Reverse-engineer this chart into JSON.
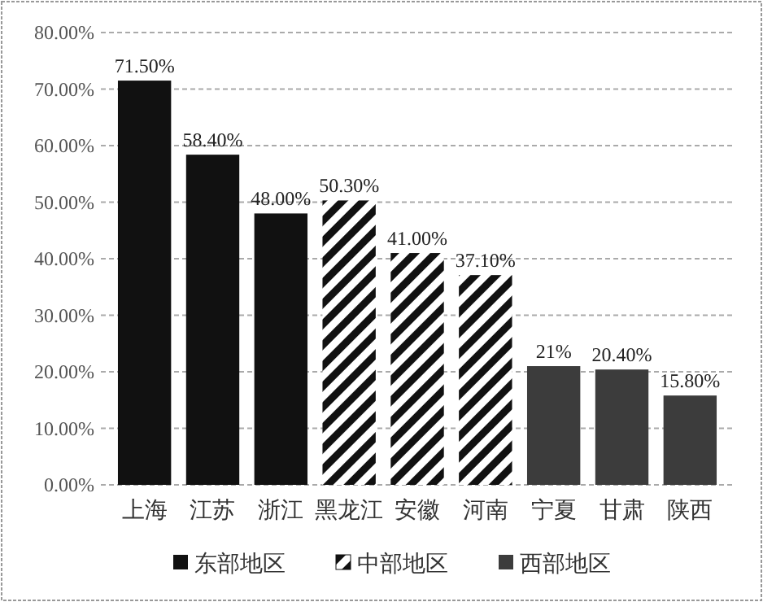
{
  "chart_data": {
    "type": "bar",
    "categories": [
      "上海",
      "江苏",
      "浙江",
      "黑龙江",
      "安徽",
      "河南",
      "宁夏",
      "甘肃",
      "陕西"
    ],
    "series": [
      {
        "name": "东部地区",
        "color": "#111111",
        "values": [
          71.5,
          58.4,
          48.0,
          null,
          null,
          null,
          null,
          null,
          null
        ],
        "value_labels": [
          "71.50%",
          "58.40%",
          "48.00%",
          null,
          null,
          null,
          null,
          null,
          null
        ]
      },
      {
        "name": "中部地区",
        "color": "#111111",
        "values": [
          null,
          null,
          null,
          50.3,
          41.0,
          37.1,
          null,
          null,
          null
        ],
        "value_labels": [
          null,
          null,
          null,
          "50.30%",
          "41.00%",
          "37.10%",
          null,
          null,
          null
        ]
      },
      {
        "name": "西部地区",
        "color": "#3c3c3c",
        "values": [
          null,
          null,
          null,
          null,
          null,
          null,
          21,
          20.4,
          15.8
        ],
        "value_labels": [
          null,
          null,
          null,
          null,
          null,
          null,
          "21%",
          "20.40%",
          "15.80%"
        ]
      }
    ],
    "ylim": [
      0,
      80
    ],
    "yticks": [
      {
        "value": 0,
        "label": "0.00%"
      },
      {
        "value": 10,
        "label": "10.00%"
      },
      {
        "value": 20,
        "label": "20.00%"
      },
      {
        "value": 30,
        "label": "30.00%"
      },
      {
        "value": 40,
        "label": "40.00%"
      },
      {
        "value": 50,
        "label": "50.00%"
      },
      {
        "value": 60,
        "label": "60.00%"
      },
      {
        "value": 70,
        "label": "70.00%"
      },
      {
        "value": 80,
        "label": "80.00%"
      }
    ],
    "grid": "y",
    "legend": "bottom"
  }
}
